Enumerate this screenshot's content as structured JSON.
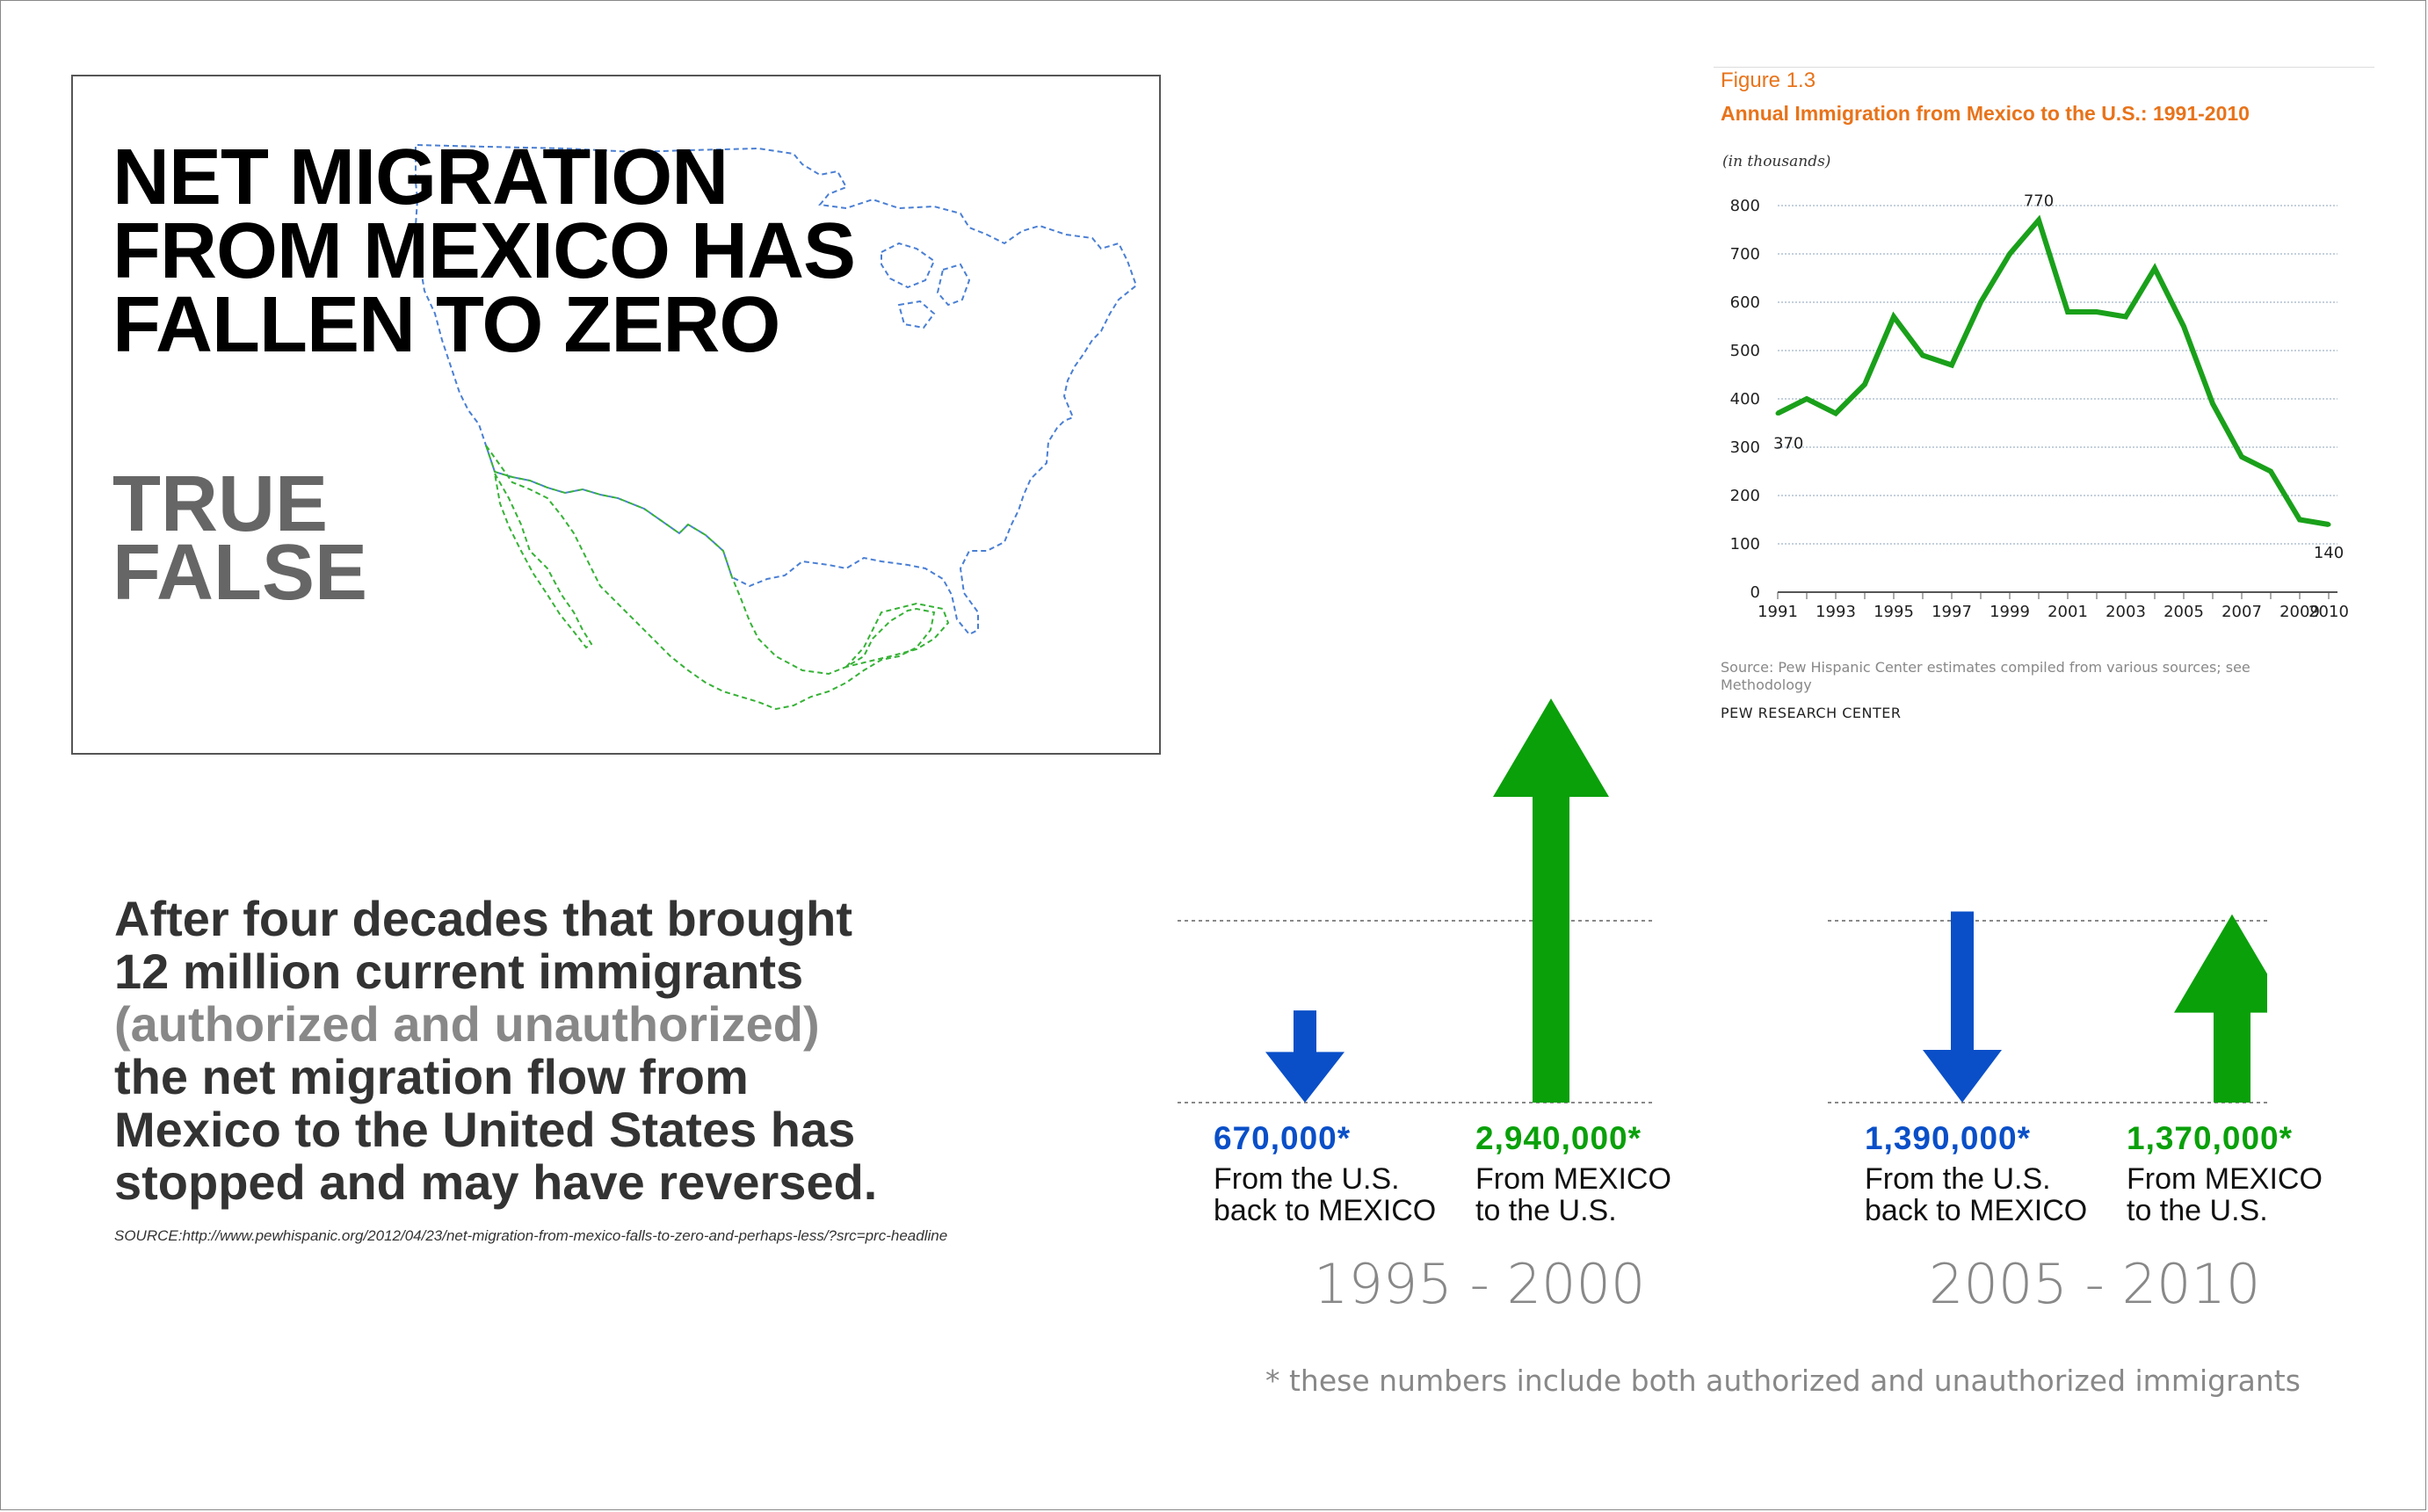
{
  "colors": {
    "blue": "#0a4fc8",
    "green": "#0aa00a",
    "orange": "#e8731a",
    "dark_text": "#333333",
    "gray_text": "#888888"
  },
  "headline": {
    "line1": "NET MIGRATION",
    "line2": "FROM MEXICO HAS",
    "line3": "FALLEN TO ZERO"
  },
  "options": {
    "true_label": "TRUE",
    "false_label": "FALSE"
  },
  "lead": {
    "line1": "After four decades that brought",
    "line2": "12 million current immigrants",
    "line3": "(authorized and unauthorized)",
    "line4": "the net migration flow from",
    "line5": "Mexico to the United States has",
    "line6": "stopped and may have reversed."
  },
  "source_text": "SOURCE:http://www.pewhispanic.org/2012/04/23/net-migration-from-mexico-falls-to-zero-and-perhaps-less/?src=prc-headline",
  "figure": {
    "label": "Figure 1.3",
    "title": "Annual Immigration from Mexico to the U.S.: 1991-2010",
    "unit": "(in thousands)",
    "source": "Source: Pew Hispanic Center estimates compiled from various sources; see Methodology",
    "org": "PEW RESEARCH CENTER"
  },
  "chart_data": [
    {
      "type": "line",
      "title": "Annual Immigration from Mexico to the U.S.: 1991-2010",
      "x": [
        1991,
        1992,
        1993,
        1994,
        1995,
        1996,
        1997,
        1998,
        1999,
        2000,
        2001,
        2002,
        2003,
        2004,
        2005,
        2006,
        2007,
        2008,
        2009,
        2010
      ],
      "series": [
        {
          "values": [
            370,
            400,
            370,
            430,
            570,
            490,
            470,
            600,
            700,
            770,
            580,
            580,
            570,
            670,
            550,
            390,
            280,
            250,
            150,
            140
          ],
          "color": "#1aa01a"
        }
      ],
      "x_ticks": [
        "1991",
        "1993",
        "1995",
        "1997",
        "1999",
        "2001",
        "2003",
        "2005",
        "2007",
        "2009",
        "2010"
      ],
      "y_ticks": [
        "0",
        "100",
        "200",
        "300",
        "400",
        "500",
        "600",
        "700",
        "800"
      ],
      "ylim": [
        0,
        800
      ],
      "annotations": [
        {
          "x": 1991,
          "text": "370"
        },
        {
          "x": 2000,
          "text": "770"
        },
        {
          "x": 2010,
          "text": "140"
        }
      ],
      "grid": true
    },
    {
      "type": "bar",
      "title": "",
      "periods": [
        {
          "label": "1995 - 2000",
          "to_mexico": {
            "value": 670000,
            "text": "670,000*",
            "desc1": "From the U.S.",
            "desc2": "back to MEXICO"
          },
          "to_us": {
            "value": 2940000,
            "text": "2,940,000*",
            "desc1": "From MEXICO",
            "desc2": "to the U.S."
          }
        },
        {
          "label": "2005 - 2010",
          "to_mexico": {
            "value": 1390000,
            "text": "1,390,000*",
            "desc1": "From the U.S.",
            "desc2": "back to MEXICO"
          },
          "to_us": {
            "value": 1370000,
            "text": "1,370,000*",
            "desc1": "From MEXICO",
            "desc2": "to the U.S."
          }
        }
      ]
    }
  ],
  "footnote": "* these numbers include both authorized and unauthorized immigrants"
}
